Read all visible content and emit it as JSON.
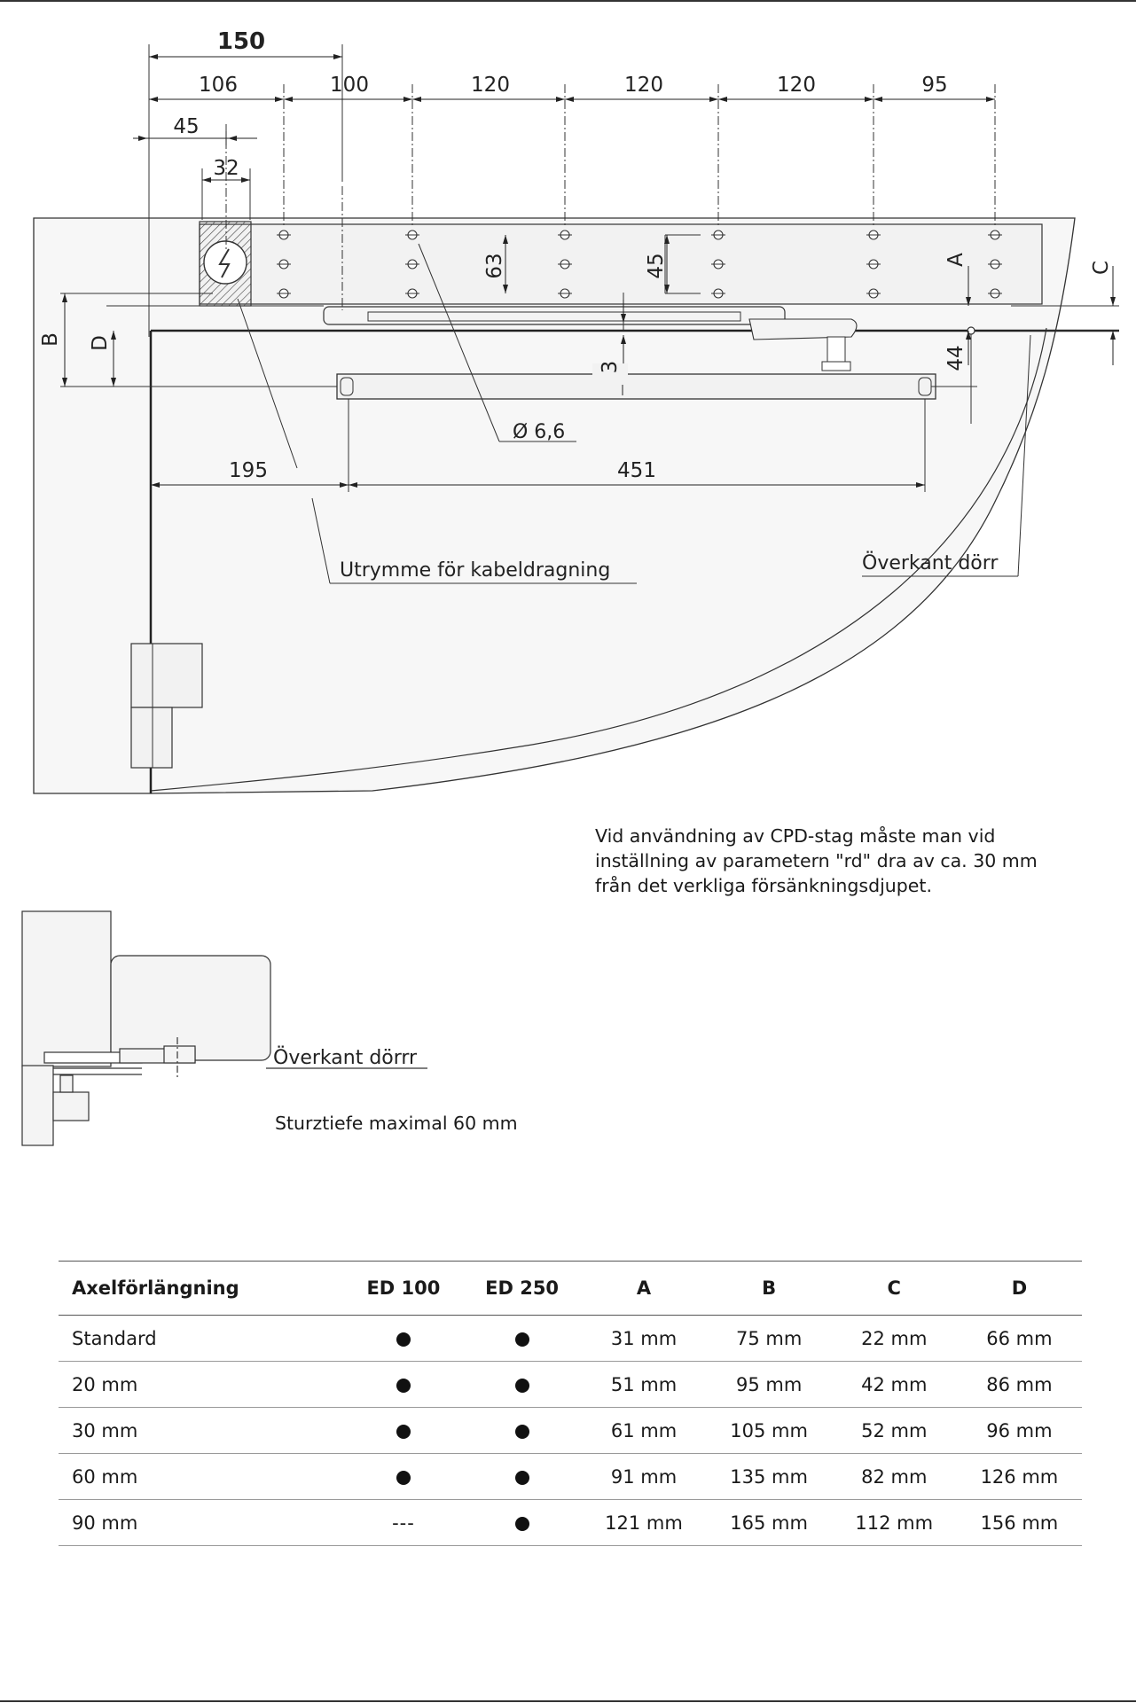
{
  "drawing": {
    "dims_top": {
      "overall_150": "150",
      "d106": "106",
      "d100": "100",
      "d120a": "120",
      "d120b": "120",
      "d120c": "120",
      "d95": "95",
      "d45": "45",
      "d32": "32"
    },
    "dims_vertical": {
      "d63": "63",
      "d45": "45",
      "d3": "3",
      "d44": "44",
      "A": "A",
      "B": "B",
      "C": "C",
      "D": "D"
    },
    "hole_label": "Ø 6,6",
    "dims_bottom": {
      "d195": "195",
      "d451": "451"
    },
    "label_cable": "Utrymme för kabeldragning",
    "label_door_top": "Överkant dörr"
  },
  "note_text": [
    "Vid användning av CPD-stag måste man vid",
    "inställning av parametern \"rd\" dra av ca. 30 mm",
    "från det verkliga försänkningsdjupet."
  ],
  "detail": {
    "label_door_top": "Överkant dörrr",
    "note": "Sturztiefe maximal 60 mm"
  },
  "table": {
    "headers": [
      "Axelförlängning",
      "ED 100",
      "ED 250",
      "A",
      "B",
      "C",
      "D"
    ],
    "rows": [
      {
        "label": "Standard",
        "ed100": true,
        "ed250": true,
        "A": "31 mm",
        "B": "75 mm",
        "C": "22 mm",
        "D": "66 mm"
      },
      {
        "label": "20 mm",
        "ed100": true,
        "ed250": true,
        "A": "51 mm",
        "B": "95 mm",
        "C": "42 mm",
        "D": "86 mm"
      },
      {
        "label": "30 mm",
        "ed100": true,
        "ed250": true,
        "A": "61 mm",
        "B": "105 mm",
        "C": "52 mm",
        "D": "96 mm"
      },
      {
        "label": "60 mm",
        "ed100": true,
        "ed250": true,
        "A": "91 mm",
        "B": "135 mm",
        "C": "82 mm",
        "D": "126 mm"
      },
      {
        "label": "90 mm",
        "ed100": false,
        "ed100_text": "---",
        "ed250": true,
        "A": "121 mm",
        "B": "165 mm",
        "C": "112 mm",
        "D": "156 mm"
      }
    ]
  }
}
